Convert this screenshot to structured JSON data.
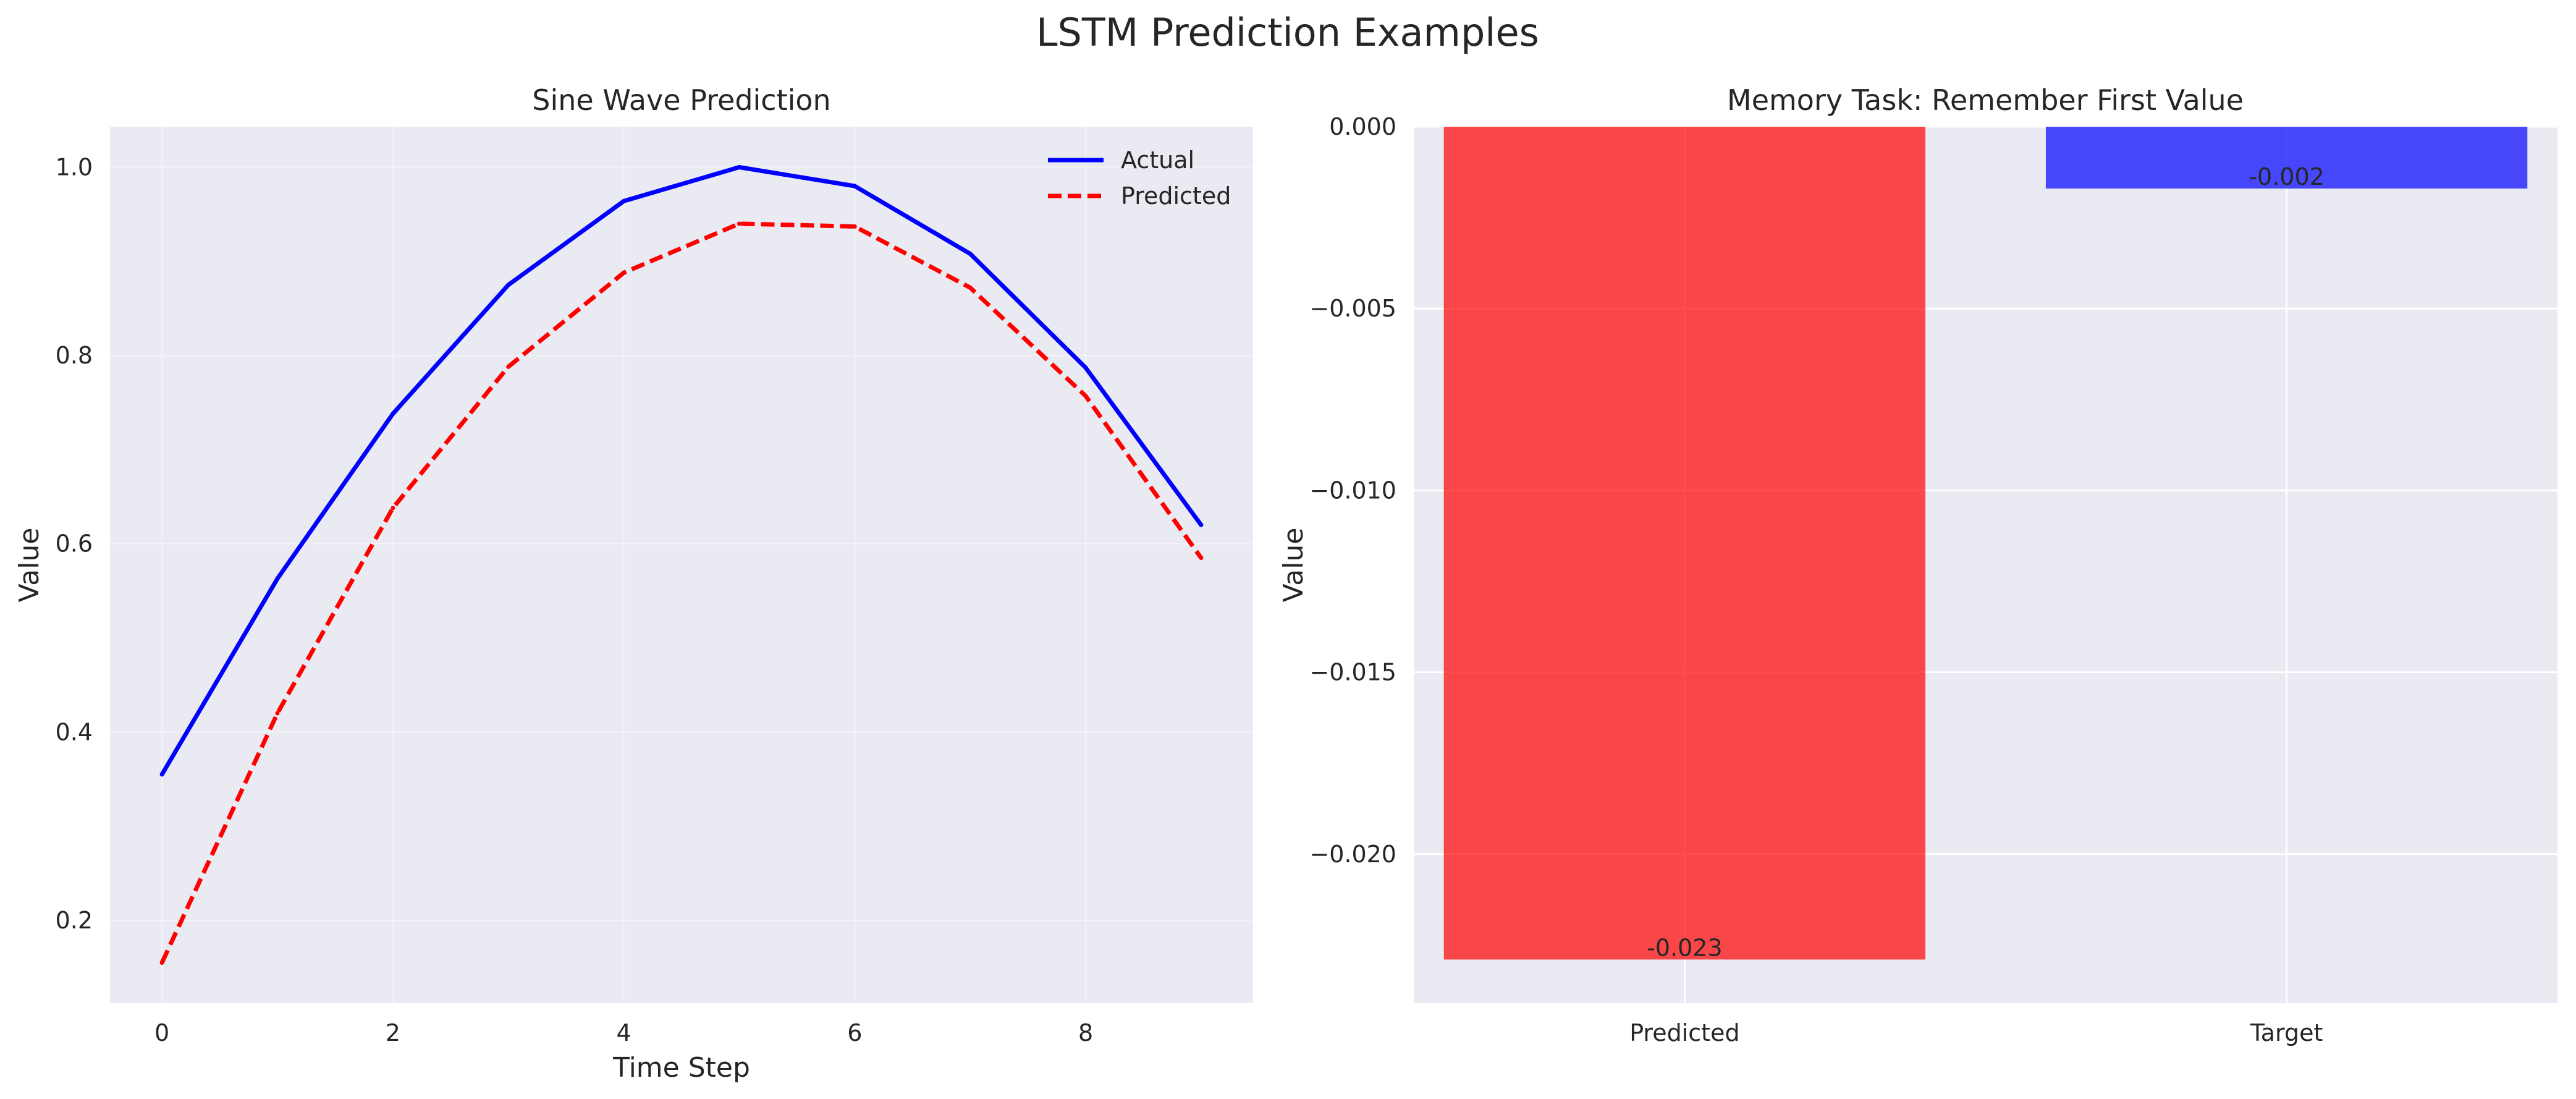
{
  "figure": {
    "suptitle": "LSTM Prediction Examples"
  },
  "colors": {
    "axes_bg": "#EAEAF2",
    "grid": "#FFFFFF",
    "text": "#262626"
  },
  "chart_data": [
    {
      "type": "line",
      "title": "Sine Wave Prediction",
      "xlabel": "Time Step",
      "ylabel": "Value",
      "xlim": [
        -0.45,
        9.45
      ],
      "ylim": [
        0.112,
        1.043
      ],
      "xticks": [
        0,
        2,
        4,
        6,
        8
      ],
      "yticks": [
        0.2,
        0.4,
        0.6,
        0.8,
        1.0
      ],
      "xtick_labels": [
        "0",
        "2",
        "4",
        "6",
        "8"
      ],
      "ytick_labels": [
        "0.2",
        "0.4",
        "0.6",
        "0.8",
        "1.0"
      ],
      "grid": true,
      "legend": "top-right",
      "x": [
        0,
        1,
        2,
        3,
        4,
        5,
        6,
        7,
        8,
        9
      ],
      "series": [
        {
          "name": "Actual",
          "color": "#0000FF",
          "style": "solid",
          "values": [
            0.355,
            0.563,
            0.738,
            0.875,
            0.964,
            1.0,
            0.98,
            0.908,
            0.787,
            0.62
          ]
        },
        {
          "name": "Predicted",
          "color": "#FF0000",
          "style": "dashed",
          "values": [
            0.155,
            0.42,
            0.638,
            0.788,
            0.888,
            0.94,
            0.937,
            0.872,
            0.757,
            0.585
          ]
        }
      ]
    },
    {
      "type": "bar",
      "title": "Memory Task: Remember First Value",
      "xlabel": "",
      "ylabel": "Value",
      "ylim": [
        -0.0241,
        0.0
      ],
      "yticks": [
        0.0,
        -0.005,
        -0.01,
        -0.015,
        -0.02
      ],
      "ytick_labels": [
        "0.000",
        "−0.005",
        "−0.010",
        "−0.015",
        "−0.020"
      ],
      "grid": true,
      "categories": [
        "Predicted",
        "Target"
      ],
      "values": [
        -0.0229,
        -0.0017
      ],
      "data_labels": [
        "-0.023",
        "-0.002"
      ],
      "colors": [
        "#FF0000",
        "#0000FF"
      ],
      "alpha": 0.7
    }
  ]
}
